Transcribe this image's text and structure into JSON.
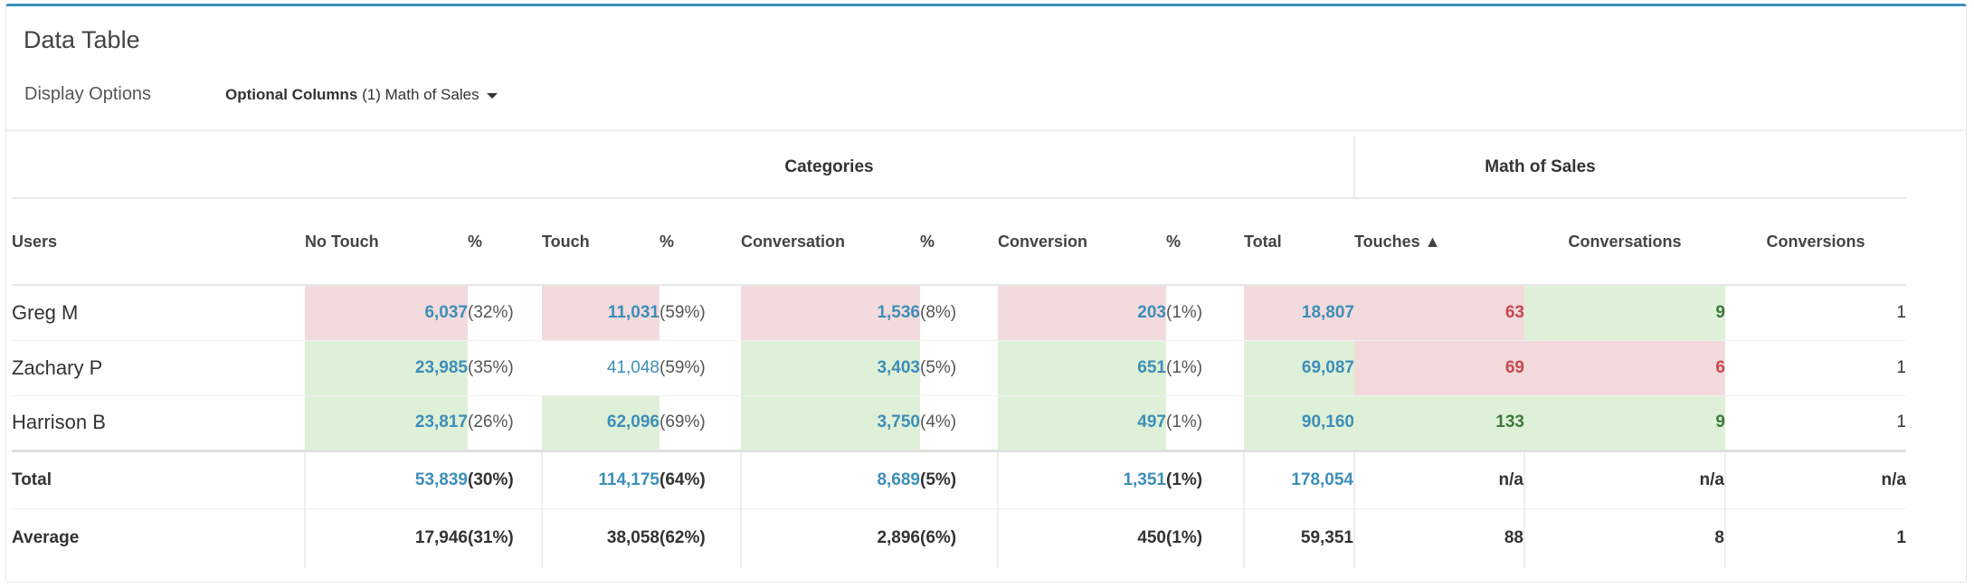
{
  "panel": {
    "title": "Data Table"
  },
  "options": {
    "display_options_label": "Display Options",
    "optional_columns_label": "Optional Columns",
    "optional_columns_value": "(1) Math of Sales"
  },
  "table": {
    "group_headers": {
      "categories": "Categories",
      "math_of_sales": "Math of Sales"
    },
    "columns": {
      "users": "Users",
      "no_touch": "No Touch",
      "no_touch_pct": "%",
      "touch": "Touch",
      "touch_pct": "%",
      "conversation": "Conversation",
      "conversation_pct": "%",
      "conversion": "Conversion",
      "conversion_pct": "%",
      "total": "Total",
      "touches": "Touches ▲",
      "conversations": "Conversations",
      "conversions": "Conversions"
    },
    "rows": [
      {
        "user": "Greg M",
        "no_touch": "6,037",
        "no_touch_pct": "(32%)",
        "touch": "11,031",
        "touch_pct": "(59%)",
        "conversation": "1,536",
        "conversation_pct": "(8%)",
        "conversion": "203",
        "conversion_pct": "(1%)",
        "total": "18,807",
        "touches": "63",
        "conversations": "9",
        "conversions": "1"
      },
      {
        "user": "Zachary P",
        "no_touch": "23,985",
        "no_touch_pct": "(35%)",
        "touch": "41,048",
        "touch_pct": "(59%)",
        "conversation": "3,403",
        "conversation_pct": "(5%)",
        "conversion": "651",
        "conversion_pct": "(1%)",
        "total": "69,087",
        "touches": "69",
        "conversations": "6",
        "conversions": "1"
      },
      {
        "user": "Harrison B",
        "no_touch": "23,817",
        "no_touch_pct": "(26%)",
        "touch": "62,096",
        "touch_pct": "(69%)",
        "conversation": "3,750",
        "conversation_pct": "(4%)",
        "conversion": "497",
        "conversion_pct": "(1%)",
        "total": "90,160",
        "touches": "133",
        "conversations": "9",
        "conversions": "1"
      }
    ],
    "total": {
      "label": "Total",
      "no_touch": "53,839",
      "no_touch_pct": "(30%)",
      "touch": "114,175",
      "touch_pct": "(64%)",
      "conversation": "8,689",
      "conversation_pct": "(5%)",
      "conversion": "1,351",
      "conversion_pct": "(1%)",
      "total": "178,054",
      "touches": "n/a",
      "conversations": "n/a",
      "conversions": "n/a"
    },
    "average": {
      "label": "Average",
      "no_touch": "17,946",
      "no_touch_pct": "(31%)",
      "touch": "38,058",
      "touch_pct": "(62%)",
      "conversation": "2,896",
      "conversation_pct": "(6%)",
      "conversion": "450",
      "conversion_pct": "(1%)",
      "total": "59,351",
      "touches": "88",
      "conversations": "8",
      "conversions": "1"
    }
  },
  "colors": {
    "accent_blue": "#3d8eb9",
    "highlight_red_bg": "#f3dbdd",
    "highlight_green_bg": "#dff0d8",
    "red_text": "#c9474f",
    "green_text": "#3c7a3c"
  }
}
